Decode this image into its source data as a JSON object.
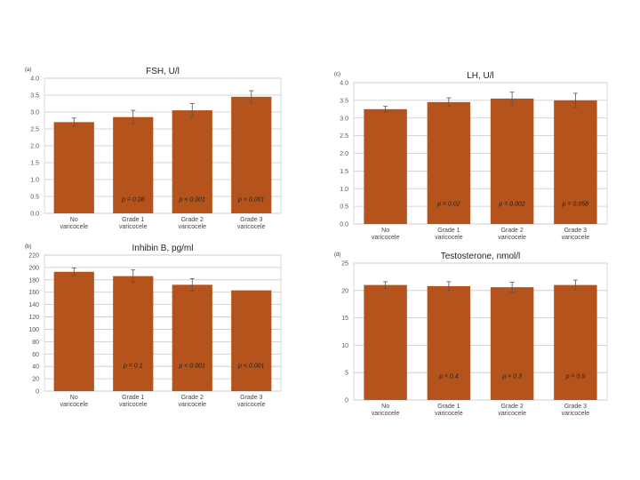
{
  "bar_color": "#B4541C",
  "error_color": "#555555",
  "grid_color": "#c8c8c8",
  "chart_data": [
    {
      "id": "a",
      "type": "bar",
      "panel_label": "(a)",
      "title": "FSH, U/l",
      "categories": [
        "No\nvaricocele",
        "Grade 1\nvaricocele",
        "Grade 2\nvaricocele",
        "Grade 3\nvaricocele"
      ],
      "values": [
        2.7,
        2.85,
        3.05,
        3.45
      ],
      "errors": [
        0.12,
        0.2,
        0.2,
        0.18
      ],
      "ylim": [
        0,
        4
      ],
      "yticks": [
        "0.0",
        "0.5",
        "1.0",
        "1.5",
        "2.0",
        "2.5",
        "3.0",
        "3.5",
        "4.0"
      ],
      "annotations": [
        "p = 0.08",
        "p < 0.001",
        "p < 0.001"
      ],
      "annotation_categories": [
        1,
        2,
        3
      ],
      "annotation_value": 0.35
    },
    {
      "id": "b",
      "type": "bar",
      "panel_label": "(b)",
      "title": "Inhibin B, pg/ml",
      "categories": [
        "No\nvaricocele",
        "Grade 1\nvaricocele",
        "Grade 2\nvaricocele",
        "Grade 3\nvaricocele"
      ],
      "values": [
        193,
        186,
        172,
        163
      ],
      "errors": [
        6,
        10,
        10,
        0
      ],
      "ylim": [
        0,
        220
      ],
      "yticks": [
        "0",
        "20",
        "40",
        "60",
        "80",
        "100",
        "120",
        "140",
        "160",
        "180",
        "200",
        "220"
      ],
      "annotations": [
        "p = 0.1",
        "p < 0.001",
        "p < 0.001"
      ],
      "annotation_categories": [
        1,
        2,
        3
      ],
      "annotation_value": 38
    },
    {
      "id": "c",
      "type": "bar",
      "panel_label": "(c)",
      "title": "LH, U/l",
      "categories": [
        "No\nvaricocele",
        "Grade 1\nvaricocele",
        "Grade 2\nvaricocele",
        "Grade 3\nvaricocele"
      ],
      "values": [
        3.25,
        3.45,
        3.55,
        3.5
      ],
      "errors": [
        0.08,
        0.12,
        0.18,
        0.2
      ],
      "ylim": [
        0,
        4
      ],
      "yticks": [
        "0.0",
        "0.5",
        "1.0",
        "1.5",
        "2.0",
        "2.5",
        "3.0",
        "3.5",
        "4.0"
      ],
      "annotations": [
        "p = 0.02",
        "p = 0.002",
        "p = 0.058"
      ],
      "annotation_categories": [
        1,
        2,
        3
      ],
      "annotation_value": 0.52
    },
    {
      "id": "d",
      "type": "bar",
      "panel_label": "(d)",
      "title": "Testosterone, nmol/l",
      "categories": [
        "No\nvaricocele",
        "Grade 1\nvaricocele",
        "Grade 2\nvaricocele",
        "Grade 3\nvaricocele"
      ],
      "values": [
        21,
        20.8,
        20.6,
        21
      ],
      "errors": [
        0.6,
        0.8,
        0.9,
        0.9
      ],
      "ylim": [
        0,
        25
      ],
      "yticks": [
        "0",
        "5",
        "10",
        "15",
        "20",
        "25"
      ],
      "annotations": [
        "p = 0.4",
        "p = 0.3",
        "p = 0.9"
      ],
      "annotation_categories": [
        1,
        2,
        3
      ],
      "annotation_value": 4
    }
  ]
}
